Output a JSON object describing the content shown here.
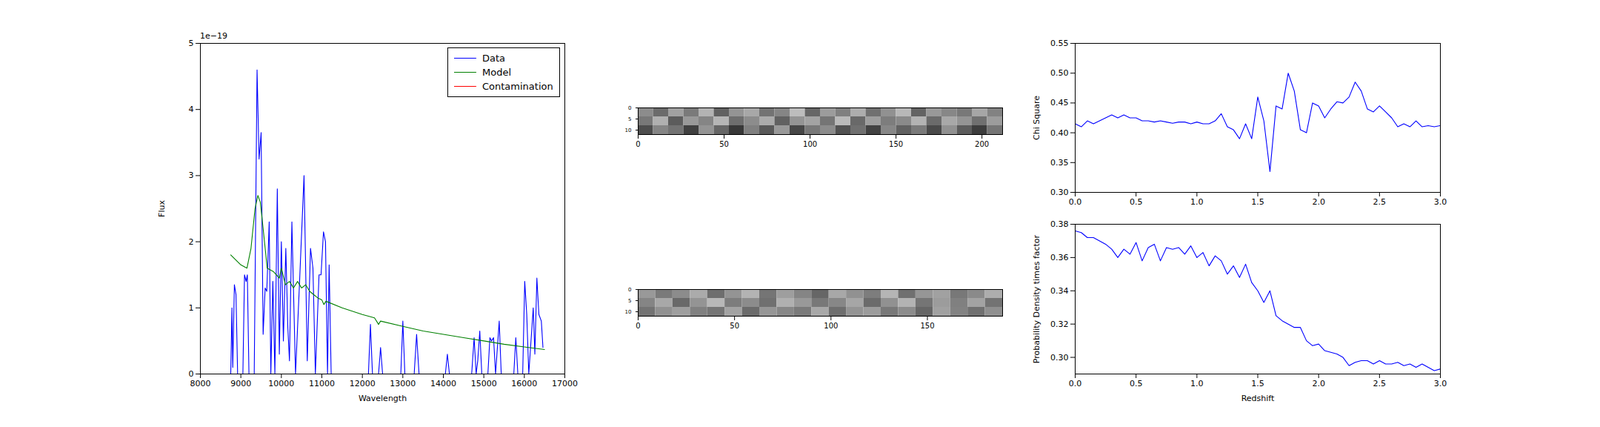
{
  "chart_data": [
    {
      "type": "line",
      "xlabel": "Wavelength",
      "ylabel": "Flux",
      "y_offset_text": "1e−19",
      "xlim": [
        8000,
        17000
      ],
      "xticks": [
        8000,
        9000,
        10000,
        11000,
        12000,
        13000,
        14000,
        15000,
        16000,
        17000
      ],
      "ylim": [
        0,
        5
      ],
      "yticks": [
        0,
        1,
        2,
        3,
        4,
        5
      ],
      "legend": "upper right",
      "series": [
        {
          "name": "Data",
          "color": "#0000ff",
          "x": [
            8750,
            8780,
            8800,
            8840,
            8880,
            8920,
            9050,
            9090,
            9130,
            9160,
            9200,
            9330,
            9400,
            9450,
            9500,
            9550,
            9600,
            9640,
            9700,
            9740,
            9790,
            9840,
            9900,
            9950,
            10000,
            10050,
            10110,
            10160,
            10200,
            10260,
            10310,
            10350,
            10450,
            10560,
            10640,
            10720,
            10780,
            10840,
            10930,
            10980,
            11040,
            11090,
            11140,
            11180,
            11230,
            12150,
            12200,
            12250,
            12400,
            12450,
            12500,
            12950,
            13000,
            13050,
            13280,
            13340,
            13400,
            14050,
            14100,
            14150,
            14700,
            14760,
            14810,
            14850,
            14900,
            14950,
            15100,
            15150,
            15190,
            15240,
            15290,
            15380,
            15430,
            15740,
            15790,
            15840,
            15960,
            16010,
            16060,
            16110,
            16220,
            16260,
            16310,
            16360,
            16420,
            16460
          ],
          "values": [
            0,
            1.0,
            0.1,
            1.35,
            1.2,
            0,
            0,
            1.5,
            1.4,
            1.5,
            0,
            0,
            4.6,
            3.25,
            3.65,
            0.6,
            1.3,
            1.25,
            2.3,
            0,
            1.4,
            0,
            2.8,
            0.3,
            2.0,
            0.5,
            1.9,
            0.7,
            0.2,
            2.3,
            1.0,
            0,
            1.4,
            3.0,
            0.2,
            1.9,
            1.6,
            0,
            1.5,
            1.5,
            2.15,
            2.0,
            0,
            1.65,
            0,
            0,
            0.75,
            0,
            0,
            0.4,
            0,
            0,
            0.8,
            0,
            0,
            0.6,
            0,
            0,
            0.3,
            0,
            0,
            0.55,
            0,
            0.2,
            0.65,
            0,
            0,
            0.55,
            0.5,
            0.55,
            0,
            0.8,
            0,
            0,
            0.55,
            0,
            0,
            1.4,
            0.9,
            0,
            1.0,
            0.3,
            1.45,
            0.9,
            0.8,
            0.4
          ]
        },
        {
          "name": "Model",
          "color": "#008000",
          "x": [
            8750,
            9000,
            9150,
            9250,
            9350,
            9420,
            9480,
            9550,
            9650,
            9800,
            9950,
            10000,
            10100,
            10200,
            10300,
            10400,
            10500,
            10600,
            10700,
            10800,
            10900,
            11000,
            11050,
            11100,
            11500,
            12000,
            12300,
            12400,
            12450,
            13000,
            13500,
            14000,
            14500,
            15000,
            15500,
            16000,
            16500
          ],
          "values": [
            1.8,
            1.65,
            1.6,
            1.9,
            2.5,
            2.7,
            2.6,
            2.2,
            1.6,
            1.55,
            1.45,
            1.6,
            1.35,
            1.4,
            1.3,
            1.4,
            1.3,
            1.35,
            1.25,
            1.2,
            1.15,
            1.12,
            1.05,
            1.1,
            1.0,
            0.9,
            0.85,
            0.75,
            0.8,
            0.72,
            0.65,
            0.6,
            0.55,
            0.5,
            0.45,
            0.41,
            0.37
          ]
        },
        {
          "name": "Contamination",
          "color": "#ff0000",
          "x": [],
          "values": []
        }
      ]
    },
    {
      "type": "heatmap",
      "xlim": [
        0,
        212
      ],
      "xticks": [
        0,
        50,
        100,
        150,
        200
      ],
      "ylim": [
        0,
        12
      ],
      "yticks": [
        0,
        5,
        10
      ],
      "zlim": [
        0,
        1
      ],
      "cells": [
        [
          0.55,
          0.42,
          0.63,
          0.48,
          0.7,
          0.38,
          0.58,
          0.66,
          0.45,
          0.52,
          0.74,
          0.4,
          0.61,
          0.5,
          0.68,
          0.44,
          0.57,
          0.72,
          0.39,
          0.6,
          0.53,
          0.47,
          0.65,
          0.51
        ],
        [
          0.47,
          0.69,
          0.36,
          0.6,
          0.52,
          0.71,
          0.43,
          0.55,
          0.67,
          0.38,
          0.58,
          0.64,
          0.46,
          0.73,
          0.41,
          0.62,
          0.49,
          0.54,
          0.7,
          0.42,
          0.66,
          0.58,
          0.44,
          0.61
        ],
        [
          0.3,
          0.52,
          0.45,
          0.25,
          0.58,
          0.4,
          0.22,
          0.5,
          0.35,
          0.6,
          0.28,
          0.47,
          0.55,
          0.32,
          0.44,
          0.26,
          0.53,
          0.38,
          0.48,
          0.29,
          0.57,
          0.36,
          0.24,
          0.46
        ]
      ]
    },
    {
      "type": "heatmap",
      "xlim": [
        0,
        189
      ],
      "xticks": [
        0,
        50,
        100,
        150
      ],
      "ylim": [
        0,
        12
      ],
      "yticks": [
        0,
        5,
        10
      ],
      "zlim": [
        0,
        1
      ],
      "cells": [
        [
          0.6,
          0.48,
          0.55,
          0.67,
          0.43,
          0.58,
          0.7,
          0.46,
          0.62,
          0.52,
          0.4,
          0.66,
          0.57,
          0.49,
          0.71,
          0.44,
          0.59,
          0.63,
          0.47,
          0.54,
          0.68
        ],
        [
          0.52,
          0.66,
          0.41,
          0.58,
          0.72,
          0.49,
          0.55,
          0.44,
          0.69,
          0.6,
          0.47,
          0.53,
          0.65,
          0.42,
          0.57,
          0.7,
          0.46,
          0.61,
          0.5,
          0.64,
          0.45
        ],
        [
          0.45,
          0.57,
          0.62,
          0.5,
          0.46,
          0.64,
          0.42,
          0.59,
          0.53,
          0.48,
          0.66,
          0.43,
          0.58,
          0.61,
          0.47,
          0.55,
          0.4,
          0.63,
          0.51,
          0.44,
          0.56
        ]
      ]
    },
    {
      "type": "line",
      "ylabel": "Chi Square",
      "color": "#0000ff",
      "xlim": [
        0,
        3
      ],
      "xticks": [
        {
          "value": 0,
          "label": "0.0"
        },
        {
          "value": 0.5,
          "label": "0.5"
        },
        {
          "value": 1,
          "label": "1.0"
        },
        {
          "value": 1.5,
          "label": "1.5"
        },
        {
          "value": 2,
          "label": "2.0"
        },
        {
          "value": 2.5,
          "label": "2.5"
        },
        {
          "value": 3,
          "label": "3.0"
        }
      ],
      "ylim": [
        0.3,
        0.55
      ],
      "yticks": [
        {
          "value": 0.3,
          "label": "0.30"
        },
        {
          "value": 0.35,
          "label": "0.35"
        },
        {
          "value": 0.4,
          "label": "0.40"
        },
        {
          "value": 0.45,
          "label": "0.45"
        },
        {
          "value": 0.5,
          "label": "0.50"
        },
        {
          "value": 0.55,
          "label": "0.55"
        }
      ],
      "x": [
        0,
        0.05,
        0.1,
        0.15,
        0.2,
        0.25,
        0.3,
        0.35,
        0.4,
        0.45,
        0.5,
        0.55,
        0.6,
        0.65,
        0.7,
        0.75,
        0.8,
        0.85,
        0.9,
        0.95,
        1.0,
        1.05,
        1.1,
        1.15,
        1.2,
        1.25,
        1.3,
        1.35,
        1.4,
        1.45,
        1.5,
        1.55,
        1.6,
        1.65,
        1.7,
        1.75,
        1.8,
        1.85,
        1.9,
        1.95,
        2.0,
        2.05,
        2.1,
        2.15,
        2.2,
        2.25,
        2.3,
        2.35,
        2.4,
        2.45,
        2.5,
        2.55,
        2.6,
        2.65,
        2.7,
        2.75,
        2.8,
        2.85,
        2.9,
        2.95,
        3.0
      ],
      "values": [
        0.415,
        0.41,
        0.42,
        0.415,
        0.42,
        0.425,
        0.43,
        0.425,
        0.43,
        0.425,
        0.425,
        0.42,
        0.42,
        0.418,
        0.42,
        0.418,
        0.416,
        0.418,
        0.418,
        0.415,
        0.418,
        0.415,
        0.415,
        0.42,
        0.432,
        0.41,
        0.405,
        0.39,
        0.415,
        0.39,
        0.46,
        0.42,
        0.335,
        0.445,
        0.44,
        0.5,
        0.47,
        0.405,
        0.4,
        0.45,
        0.445,
        0.425,
        0.44,
        0.452,
        0.45,
        0.46,
        0.485,
        0.47,
        0.44,
        0.435,
        0.445,
        0.435,
        0.425,
        0.41,
        0.415,
        0.41,
        0.42,
        0.41,
        0.412,
        0.41,
        0.412
      ]
    },
    {
      "type": "line",
      "xlabel": "Redshift",
      "ylabel": "Probability Density times factor",
      "color": "#0000ff",
      "xlim": [
        0,
        3
      ],
      "xticks": [
        {
          "value": 0,
          "label": "0.0"
        },
        {
          "value": 0.5,
          "label": "0.5"
        },
        {
          "value": 1,
          "label": "1.0"
        },
        {
          "value": 1.5,
          "label": "1.5"
        },
        {
          "value": 2,
          "label": "2.0"
        },
        {
          "value": 2.5,
          "label": "2.5"
        },
        {
          "value": 3,
          "label": "3.0"
        }
      ],
      "ylim": [
        0.29,
        0.38
      ],
      "yticks": [
        {
          "value": 0.3,
          "label": "0.30"
        },
        {
          "value": 0.32,
          "label": "0.32"
        },
        {
          "value": 0.34,
          "label": "0.34"
        },
        {
          "value": 0.36,
          "label": "0.36"
        },
        {
          "value": 0.38,
          "label": "0.38"
        }
      ],
      "x": [
        0,
        0.05,
        0.1,
        0.15,
        0.2,
        0.25,
        0.3,
        0.35,
        0.4,
        0.45,
        0.5,
        0.55,
        0.6,
        0.65,
        0.7,
        0.75,
        0.8,
        0.85,
        0.9,
        0.95,
        1.0,
        1.05,
        1.1,
        1.15,
        1.2,
        1.25,
        1.3,
        1.35,
        1.4,
        1.45,
        1.5,
        1.55,
        1.6,
        1.65,
        1.7,
        1.75,
        1.8,
        1.85,
        1.9,
        1.95,
        2.0,
        2.05,
        2.1,
        2.15,
        2.2,
        2.25,
        2.3,
        2.35,
        2.4,
        2.45,
        2.5,
        2.55,
        2.6,
        2.65,
        2.7,
        2.75,
        2.8,
        2.85,
        2.9,
        2.95,
        3.0
      ],
      "values": [
        0.376,
        0.375,
        0.372,
        0.372,
        0.37,
        0.368,
        0.365,
        0.36,
        0.365,
        0.362,
        0.369,
        0.358,
        0.366,
        0.368,
        0.358,
        0.366,
        0.365,
        0.366,
        0.362,
        0.367,
        0.36,
        0.363,
        0.355,
        0.361,
        0.358,
        0.35,
        0.355,
        0.348,
        0.356,
        0.345,
        0.34,
        0.333,
        0.34,
        0.325,
        0.322,
        0.32,
        0.318,
        0.318,
        0.31,
        0.307,
        0.308,
        0.304,
        0.303,
        0.302,
        0.3,
        0.295,
        0.297,
        0.298,
        0.298,
        0.296,
        0.298,
        0.296,
        0.296,
        0.297,
        0.295,
        0.296,
        0.294,
        0.296,
        0.294,
        0.292,
        0.293
      ]
    }
  ]
}
